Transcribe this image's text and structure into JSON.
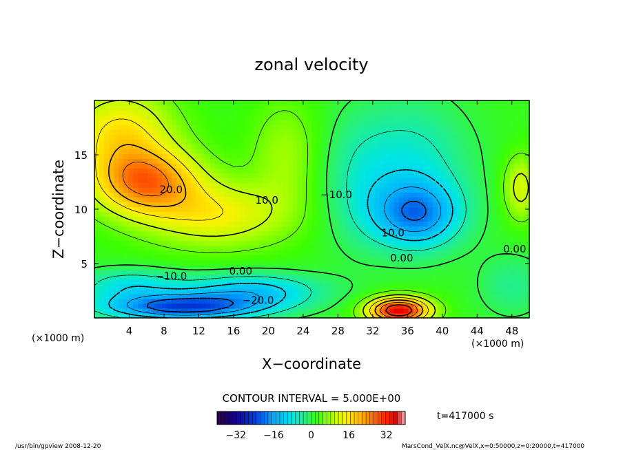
{
  "chart_data": {
    "type": "heatmap",
    "title": "zonal velocity",
    "xlabel": "X−coordinate",
    "ylabel": "Z−coordinate",
    "x_unit": "(×1000 m)",
    "z_unit": "(×1000 m)",
    "xlim": [
      0,
      50
    ],
    "ylim": [
      0,
      20
    ],
    "x_ticks": [
      "4",
      "8",
      "12",
      "16",
      "20",
      "24",
      "28",
      "32",
      "36",
      "40",
      "44",
      "48"
    ],
    "y_ticks": [
      "5",
      "10",
      "15"
    ],
    "contour_interval_text": "CONTOUR INTERVAL = 5.000E+00",
    "time_text": "t=417000 s",
    "colorbar": {
      "min": -40,
      "max": 40,
      "ticks": [
        "−32",
        "−16",
        "0",
        "16",
        "32"
      ]
    },
    "contour_labels": [
      "20.0",
      "10.0",
      "10.0",
      "0.00",
      "−10.0",
      "0.00",
      "−20.0",
      "−10.0",
      "0.00"
    ],
    "blobs": [
      {
        "x": 6,
        "z": 12.5,
        "v": 22,
        "rx": 6,
        "rz": 3
      },
      {
        "x": 14,
        "z": 9.5,
        "v": 12,
        "rx": 8,
        "rz": 3
      },
      {
        "x": 10,
        "z": 1,
        "v": -24,
        "rx": 9,
        "rz": 1.2
      },
      {
        "x": 18,
        "z": 2.5,
        "v": -14,
        "rx": 8,
        "rz": 1.6
      },
      {
        "x": 4,
        "z": 3,
        "v": -10,
        "rx": 6,
        "rz": 1.5
      },
      {
        "x": 35,
        "z": 0.7,
        "v": 34,
        "rx": 3.5,
        "rz": 1.2
      },
      {
        "x": 37,
        "z": 9.5,
        "v": -18,
        "rx": 5,
        "rz": 3
      },
      {
        "x": 36,
        "z": 14,
        "v": -9,
        "rx": 7,
        "rz": 6
      },
      {
        "x": 30,
        "z": 12,
        "v": -4,
        "rx": 4,
        "rz": 6
      },
      {
        "x": 3,
        "z": 17,
        "v": 14,
        "rx": 6,
        "rz": 4
      },
      {
        "x": 48,
        "z": 3,
        "v": -5,
        "rx": 4,
        "rz": 3
      },
      {
        "x": 49,
        "z": 12,
        "v": 10,
        "rx": 2,
        "rz": 3
      },
      {
        "x": 22,
        "z": 15,
        "v": 6,
        "rx": 4,
        "rz": 5
      }
    ]
  },
  "footer": {
    "left": "/usr/bin/gpview  2008-12-20",
    "right": "MarsCond_VelX.nc@VelX,x=0:50000,z=0:20000,t=417000"
  }
}
